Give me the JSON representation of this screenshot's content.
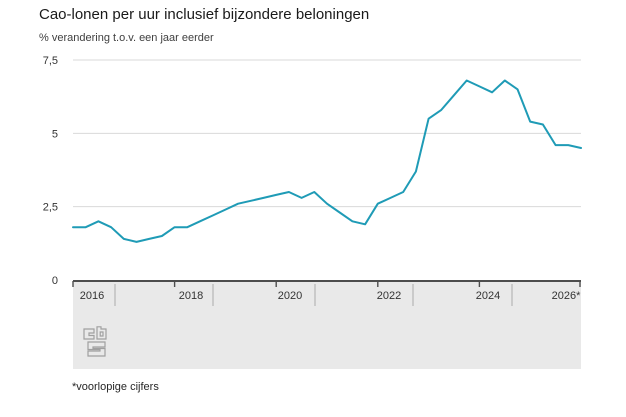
{
  "header": {
    "title": "Cao-lonen per uur inclusief bijzondere beloningen",
    "subtitle": "% verandering t.o.v. een jaar eerder"
  },
  "footnote": "*voorlopige cijfers",
  "branding": {
    "logo_icon": "cbs-logo"
  },
  "colors": {
    "line": "#1f9bb6",
    "grid": "#d9d9d9",
    "axis_band_fill": "#e9e9e9",
    "axis_line": "#4d4d4d",
    "separator": "#ababab",
    "text": "#333333",
    "logo": "#a0a0a0"
  },
  "chart_data": {
    "type": "line",
    "title": "Cao-lonen per uur inclusief bijzondere beloningen",
    "ylabel": "% verandering t.o.v. een jaar eerder",
    "unit": "%",
    "frequency": "quarterly",
    "grid": true,
    "legend": false,
    "ylim": [
      0,
      7.5
    ],
    "y_ticks": [
      0,
      2.5,
      5,
      7.5
    ],
    "y_tick_labels": [
      "0",
      "2,5",
      "5",
      "7,5"
    ],
    "x_tick_labels": [
      "2016",
      "2018",
      "2020",
      "2022",
      "2024",
      "2026*"
    ],
    "x_range": [
      "2016 Q1",
      "2026 Q1"
    ],
    "footnote": "*voorlopige cijfers (provisional figures, marked with *)",
    "series": [
      {
        "name": "Cao-lonen per uur inclusief bijzondere beloningen",
        "x": [
          "2016Q1",
          "2016Q2",
          "2016Q3",
          "2016Q4",
          "2017Q1",
          "2017Q2",
          "2017Q3",
          "2017Q4",
          "2018Q1",
          "2018Q2",
          "2018Q3",
          "2018Q4",
          "2019Q1",
          "2019Q2",
          "2019Q3",
          "2019Q4",
          "2020Q1",
          "2020Q2",
          "2020Q3",
          "2020Q4",
          "2021Q1",
          "2021Q2",
          "2021Q3",
          "2021Q4",
          "2022Q1",
          "2022Q2",
          "2022Q3",
          "2022Q4",
          "2023Q1",
          "2023Q2",
          "2023Q3",
          "2023Q4",
          "2024Q1",
          "2024Q2",
          "2024Q3",
          "2024Q4",
          "2025Q1",
          "2025Q2",
          "2025Q3",
          "2025Q4",
          "2026Q1"
        ],
        "values": [
          1.8,
          1.8,
          2.0,
          1.8,
          1.4,
          1.3,
          1.4,
          1.5,
          1.8,
          1.8,
          2.0,
          2.2,
          2.4,
          2.6,
          2.7,
          2.8,
          2.9,
          3.0,
          2.8,
          3.0,
          2.6,
          2.3,
          2.0,
          1.9,
          2.6,
          2.8,
          3.0,
          3.7,
          5.5,
          5.8,
          6.3,
          6.8,
          6.6,
          6.4,
          6.8,
          6.5,
          5.4,
          5.3,
          4.6,
          4.6,
          4.5
        ]
      }
    ]
  }
}
